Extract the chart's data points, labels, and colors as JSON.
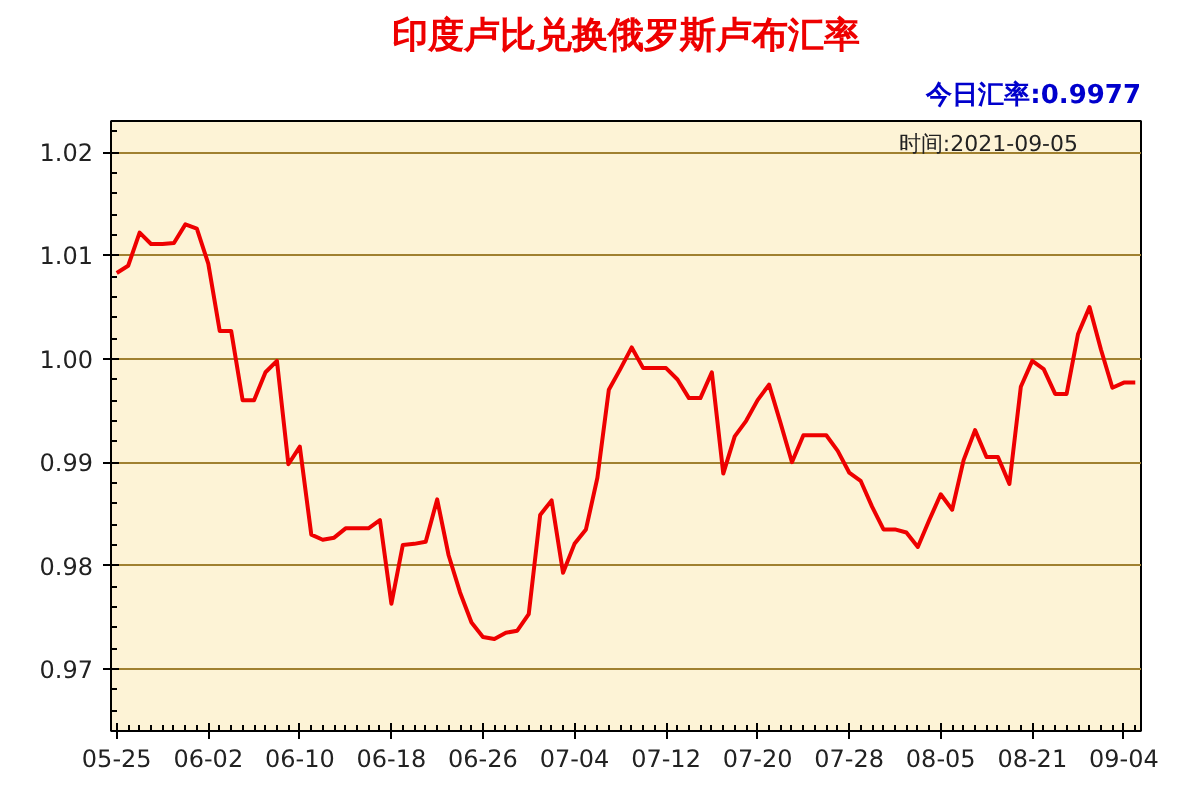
{
  "chart_data": {
    "type": "line",
    "title": "印度卢比兑换俄罗斯卢布汇率",
    "subtitle": "今日汇率:0.9977",
    "annotations": [
      "时间:2021-09-05"
    ],
    "categories": [
      "05-25",
      null,
      null,
      null,
      null,
      null,
      null,
      null,
      "06-02",
      null,
      null,
      null,
      null,
      null,
      null,
      null,
      "06-10",
      null,
      null,
      null,
      null,
      null,
      null,
      null,
      "06-18",
      null,
      null,
      null,
      null,
      null,
      null,
      null,
      "06-26",
      null,
      null,
      null,
      null,
      null,
      null,
      null,
      "07-04",
      null,
      null,
      null,
      null,
      null,
      null,
      null,
      "07-12",
      null,
      null,
      null,
      null,
      null,
      null,
      null,
      "07-20",
      null,
      null,
      null,
      null,
      null,
      null,
      null,
      "07-28",
      null,
      null,
      null,
      null,
      null,
      null,
      null,
      "08-05",
      null,
      null,
      null,
      null,
      null,
      null,
      null,
      "08-21",
      null,
      null,
      null,
      null,
      null,
      null,
      null,
      "09-04",
      null
    ],
    "series": [
      {
        "color": "#ee0000",
        "values": [
          1.0083,
          1.009,
          1.0122,
          1.0111,
          1.0111,
          1.0112,
          1.013,
          1.0126,
          1.0092,
          1.0027,
          1.0027,
          0.996,
          0.996,
          0.9987,
          0.9998,
          0.9898,
          0.9915,
          0.983,
          0.9825,
          0.9827,
          0.9836,
          0.9836,
          0.9836,
          0.9844,
          0.9763,
          0.982,
          0.9821,
          0.9823,
          0.9864,
          0.981,
          0.9774,
          0.9745,
          0.9731,
          0.9729,
          0.9735,
          0.9737,
          0.9753,
          0.9849,
          0.9863,
          0.9793,
          0.9821,
          0.9835,
          0.9885,
          0.997,
          0.999,
          1.0011,
          0.9991,
          0.9991,
          0.9991,
          0.998,
          0.9962,
          0.9962,
          0.9987,
          0.9889,
          0.9925,
          0.994,
          0.996,
          0.9975,
          0.9938,
          0.99,
          0.9926,
          0.9926,
          0.9926,
          0.9911,
          0.989,
          0.9882,
          0.9857,
          0.9835,
          0.9835,
          0.9832,
          0.9818,
          0.9844,
          0.9869,
          0.9854,
          0.9902,
          0.9931,
          0.9905,
          0.9905,
          0.9879,
          0.9973,
          0.9998,
          0.999,
          0.9966,
          0.9966,
          1.0024,
          1.005,
          1.0009,
          0.9972,
          0.9977,
          0.9977
        ]
      }
    ],
    "ylim": [
      0.964,
      1.023
    ],
    "yticks": [
      0.97,
      0.98,
      0.99,
      {
        "value": 1.0,
        "label": "1.00"
      },
      1.01,
      1.02
    ],
    "grid": "y",
    "marker": "none",
    "line_style": "solid"
  }
}
